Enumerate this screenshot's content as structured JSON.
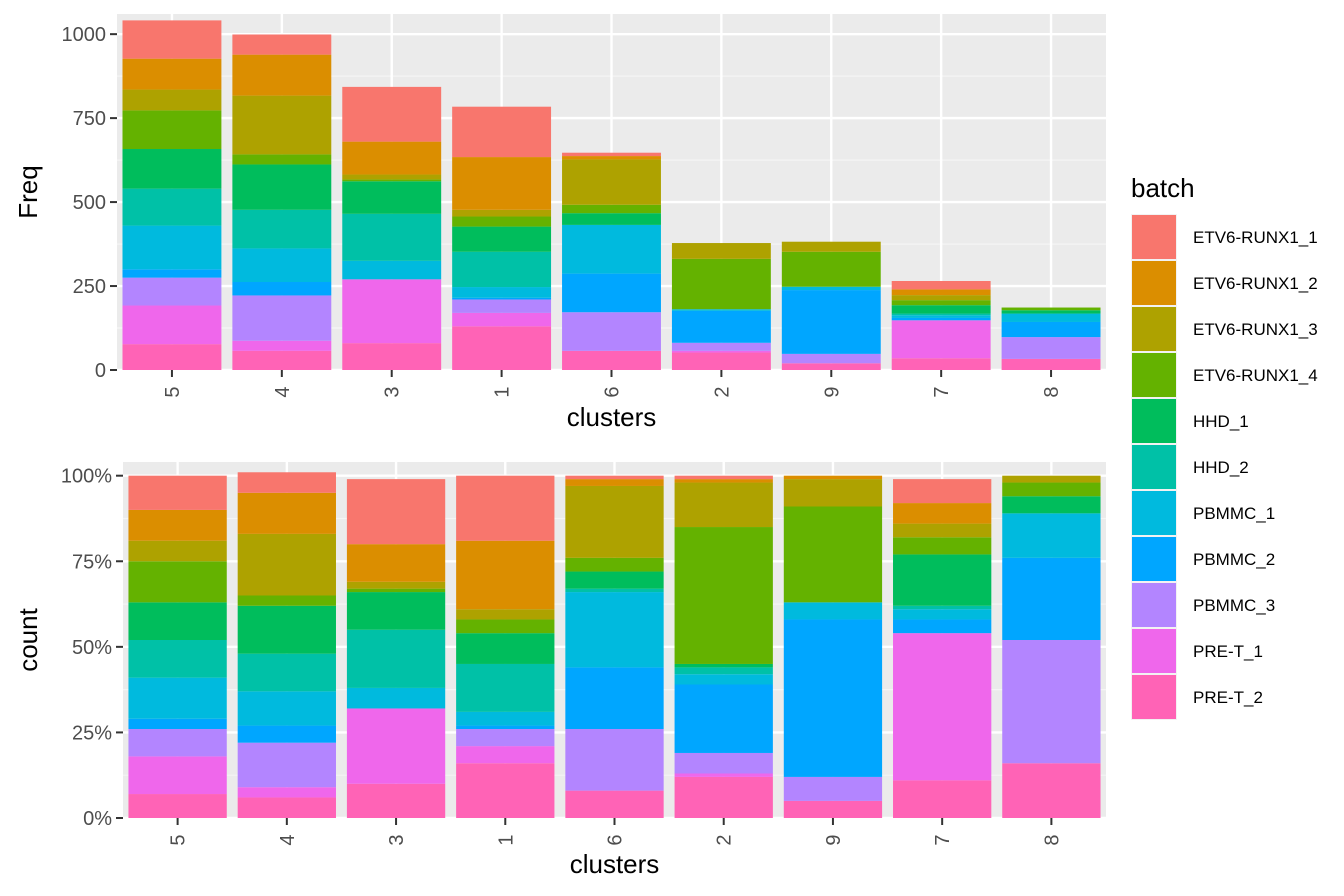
{
  "chart_data": [
    {
      "type": "bar",
      "stacked": true,
      "panel": "top",
      "xlabel": "clusters",
      "ylabel": "Freq",
      "ylim": [
        0,
        1060
      ],
      "y_ticks": [
        0,
        250,
        500,
        750,
        1000
      ],
      "y_tick_labels": [
        "0",
        "250",
        "500",
        "750",
        "1000"
      ],
      "categories": [
        "5",
        "4",
        "3",
        "1",
        "6",
        "2",
        "9",
        "7",
        "8"
      ],
      "grid": true,
      "series": [
        {
          "name": "PRE-T_2",
          "values": [
            77,
            57,
            80,
            130,
            57,
            52,
            20,
            35,
            33
          ]
        },
        {
          "name": "PRE-T_1",
          "values": [
            115,
            30,
            190,
            40,
            0,
            5,
            0,
            113,
            0
          ]
        },
        {
          "name": "PBMMC_3",
          "values": [
            83,
            135,
            0,
            40,
            115,
            24,
            28,
            0,
            65
          ]
        },
        {
          "name": "PBMMC_2",
          "values": [
            25,
            40,
            0,
            5,
            115,
            95,
            190,
            7,
            45
          ]
        },
        {
          "name": "PBMMC_1",
          "values": [
            130,
            100,
            55,
            32,
            145,
            5,
            10,
            8,
            25
          ]
        },
        {
          "name": "HHD_2",
          "values": [
            110,
            115,
            140,
            105,
            0,
            0,
            0,
            5,
            0
          ]
        },
        {
          "name": "HHD_1",
          "values": [
            118,
            135,
            97,
            75,
            35,
            0,
            0,
            25,
            10
          ]
        },
        {
          "name": "ETV6-RUNX1_4",
          "values": [
            115,
            30,
            5,
            30,
            25,
            150,
            104,
            15,
            8
          ]
        },
        {
          "name": "ETV6-RUNX1_3",
          "values": [
            62,
            175,
            15,
            20,
            135,
            47,
            30,
            15,
            0
          ]
        },
        {
          "name": "ETV6-RUNX1_2",
          "values": [
            92,
            122,
            98,
            157,
            10,
            0,
            0,
            17,
            0
          ]
        },
        {
          "name": "ETV6-RUNX1_1",
          "values": [
            114,
            60,
            163,
            150,
            10,
            0,
            0,
            25,
            0
          ]
        }
      ]
    },
    {
      "type": "bar",
      "stacked": true,
      "normalized": true,
      "panel": "bottom",
      "xlabel": "clusters",
      "ylabel": "count",
      "ylim": [
        0,
        1.04
      ],
      "y_ticks": [
        0,
        0.25,
        0.5,
        0.75,
        1.0
      ],
      "y_tick_labels": [
        "0%",
        "25%",
        "50%",
        "75%",
        "100%"
      ],
      "categories": [
        "5",
        "4",
        "3",
        "1",
        "6",
        "2",
        "9",
        "7",
        "8"
      ],
      "grid": true,
      "series": [
        {
          "name": "PRE-T_2",
          "values": [
            0.07,
            0.06,
            0.1,
            0.16,
            0.08,
            0.12,
            0.05,
            0.11,
            0.16
          ]
        },
        {
          "name": "PRE-T_1",
          "values": [
            0.11,
            0.03,
            0.22,
            0.05,
            0.0,
            0.01,
            0.0,
            0.43,
            0.0
          ]
        },
        {
          "name": "PBMMC_3",
          "values": [
            0.08,
            0.13,
            0.0,
            0.05,
            0.18,
            0.06,
            0.07,
            0.0,
            0.36
          ]
        },
        {
          "name": "PBMMC_2",
          "values": [
            0.03,
            0.05,
            0.0,
            0.01,
            0.18,
            0.2,
            0.46,
            0.04,
            0.24
          ]
        },
        {
          "name": "PBMMC_1",
          "values": [
            0.12,
            0.1,
            0.06,
            0.04,
            0.22,
            0.03,
            0.05,
            0.03,
            0.13
          ]
        },
        {
          "name": "HHD_2",
          "values": [
            0.11,
            0.11,
            0.17,
            0.14,
            0.01,
            0.02,
            0.0,
            0.01,
            0.0
          ]
        },
        {
          "name": "HHD_1",
          "values": [
            0.11,
            0.14,
            0.11,
            0.09,
            0.05,
            0.01,
            0.0,
            0.15,
            0.05
          ]
        },
        {
          "name": "ETV6-RUNX1_4",
          "values": [
            0.12,
            0.03,
            0.01,
            0.04,
            0.04,
            0.4,
            0.28,
            0.05,
            0.04
          ]
        },
        {
          "name": "ETV6-RUNX1_3",
          "values": [
            0.06,
            0.18,
            0.02,
            0.03,
            0.21,
            0.13,
            0.08,
            0.04,
            0.02
          ]
        },
        {
          "name": "ETV6-RUNX1_2",
          "values": [
            0.09,
            0.12,
            0.11,
            0.2,
            0.02,
            0.01,
            0.01,
            0.06,
            0.0
          ]
        },
        {
          "name": "ETV6-RUNX1_1",
          "values": [
            0.1,
            0.06,
            0.19,
            0.19,
            0.01,
            0.01,
            0.0,
            0.07,
            0.0
          ]
        }
      ]
    }
  ],
  "legend": {
    "title": "batch",
    "placement": "right",
    "items": [
      {
        "label": "ETV6-RUNX1_1",
        "color": "#F8766D"
      },
      {
        "label": "ETV6-RUNX1_2",
        "color": "#DB8E00"
      },
      {
        "label": "ETV6-RUNX1_3",
        "color": "#AEA200"
      },
      {
        "label": "ETV6-RUNX1_4",
        "color": "#64B200"
      },
      {
        "label": "HHD_1",
        "color": "#00BD5C"
      },
      {
        "label": "HHD_2",
        "color": "#00C1A7"
      },
      {
        "label": "PBMMC_1",
        "color": "#00BADE"
      },
      {
        "label": "PBMMC_2",
        "color": "#00A6FF"
      },
      {
        "label": "PBMMC_3",
        "color": "#B385FF"
      },
      {
        "label": "PRE-T_1",
        "color": "#EF67EB"
      },
      {
        "label": "PRE-T_2",
        "color": "#FF63B6"
      }
    ]
  },
  "colors": {
    "panel_background": "#EBEBEB",
    "grid_major": "#FFFFFF",
    "grid_minor": "#F5F5F5",
    "tick_text": "#4D4D4D"
  }
}
